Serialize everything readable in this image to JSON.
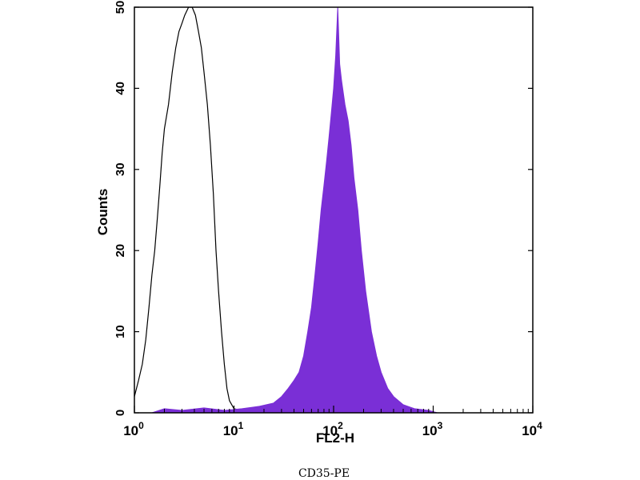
{
  "chart_data": {
    "type": "histogram",
    "xlabel": "FL2-H",
    "ylabel": "Counts",
    "caption": "CD35-PE",
    "x_scale": "log",
    "xlim": [
      1,
      10000
    ],
    "ylim": [
      0,
      50
    ],
    "x_ticks": [
      {
        "value": 1,
        "base": "10",
        "exp": "0"
      },
      {
        "value": 10,
        "base": "10",
        "exp": "1"
      },
      {
        "value": 100,
        "base": "10",
        "exp": "2"
      },
      {
        "value": 1000,
        "base": "10",
        "exp": "3"
      },
      {
        "value": 10000,
        "base": "10",
        "exp": "4"
      }
    ],
    "y_ticks": [
      "0",
      "10",
      "20",
      "30",
      "40",
      "50"
    ],
    "colors": {
      "stained_fill": "#7a2fd6",
      "control_line": "#000000",
      "frame": "#000000"
    },
    "series": [
      {
        "style": "outline",
        "color": "#000000",
        "points": [
          [
            1.0,
            2
          ],
          [
            1.1,
            4
          ],
          [
            1.2,
            6
          ],
          [
            1.3,
            9
          ],
          [
            1.4,
            13
          ],
          [
            1.5,
            17
          ],
          [
            1.6,
            20
          ],
          [
            1.7,
            24
          ],
          [
            1.8,
            28
          ],
          [
            1.9,
            32
          ],
          [
            2.0,
            35
          ],
          [
            2.2,
            38
          ],
          [
            2.4,
            42
          ],
          [
            2.6,
            45
          ],
          [
            2.8,
            47
          ],
          [
            3.0,
            48
          ],
          [
            3.2,
            49
          ],
          [
            3.5,
            50
          ],
          [
            3.8,
            50
          ],
          [
            4.1,
            49
          ],
          [
            4.4,
            47
          ],
          [
            4.7,
            45
          ],
          [
            5.0,
            42
          ],
          [
            5.4,
            38
          ],
          [
            5.8,
            33
          ],
          [
            6.2,
            27
          ],
          [
            6.6,
            20
          ],
          [
            7.0,
            15
          ],
          [
            7.5,
            10
          ],
          [
            8.0,
            6
          ],
          [
            8.5,
            3
          ],
          [
            9.0,
            1.5
          ],
          [
            10,
            0.5
          ],
          [
            12,
            0.3
          ],
          [
            15,
            0.2
          ],
          [
            20,
            0
          ]
        ]
      },
      {
        "style": "filled",
        "color": "#7a2fd6",
        "points": [
          [
            1.5,
            0
          ],
          [
            2,
            0.5
          ],
          [
            3,
            0.3
          ],
          [
            5,
            0.6
          ],
          [
            8,
            0.3
          ],
          [
            12,
            0.5
          ],
          [
            18,
            0.8
          ],
          [
            25,
            1.2
          ],
          [
            30,
            2
          ],
          [
            35,
            3
          ],
          [
            40,
            4
          ],
          [
            45,
            5
          ],
          [
            50,
            7
          ],
          [
            55,
            10
          ],
          [
            60,
            13
          ],
          [
            65,
            17
          ],
          [
            70,
            21
          ],
          [
            75,
            25
          ],
          [
            80,
            28
          ],
          [
            85,
            31
          ],
          [
            90,
            34
          ],
          [
            95,
            37
          ],
          [
            100,
            40
          ],
          [
            105,
            44
          ],
          [
            110,
            50
          ],
          [
            115,
            43
          ],
          [
            120,
            41
          ],
          [
            130,
            38
          ],
          [
            140,
            36
          ],
          [
            150,
            33
          ],
          [
            160,
            29
          ],
          [
            175,
            25
          ],
          [
            190,
            20
          ],
          [
            210,
            15
          ],
          [
            240,
            10
          ],
          [
            270,
            7
          ],
          [
            300,
            5
          ],
          [
            350,
            3
          ],
          [
            400,
            2
          ],
          [
            500,
            1
          ],
          [
            650,
            0.5
          ],
          [
            900,
            0.3
          ],
          [
            1100,
            0
          ]
        ]
      }
    ]
  }
}
